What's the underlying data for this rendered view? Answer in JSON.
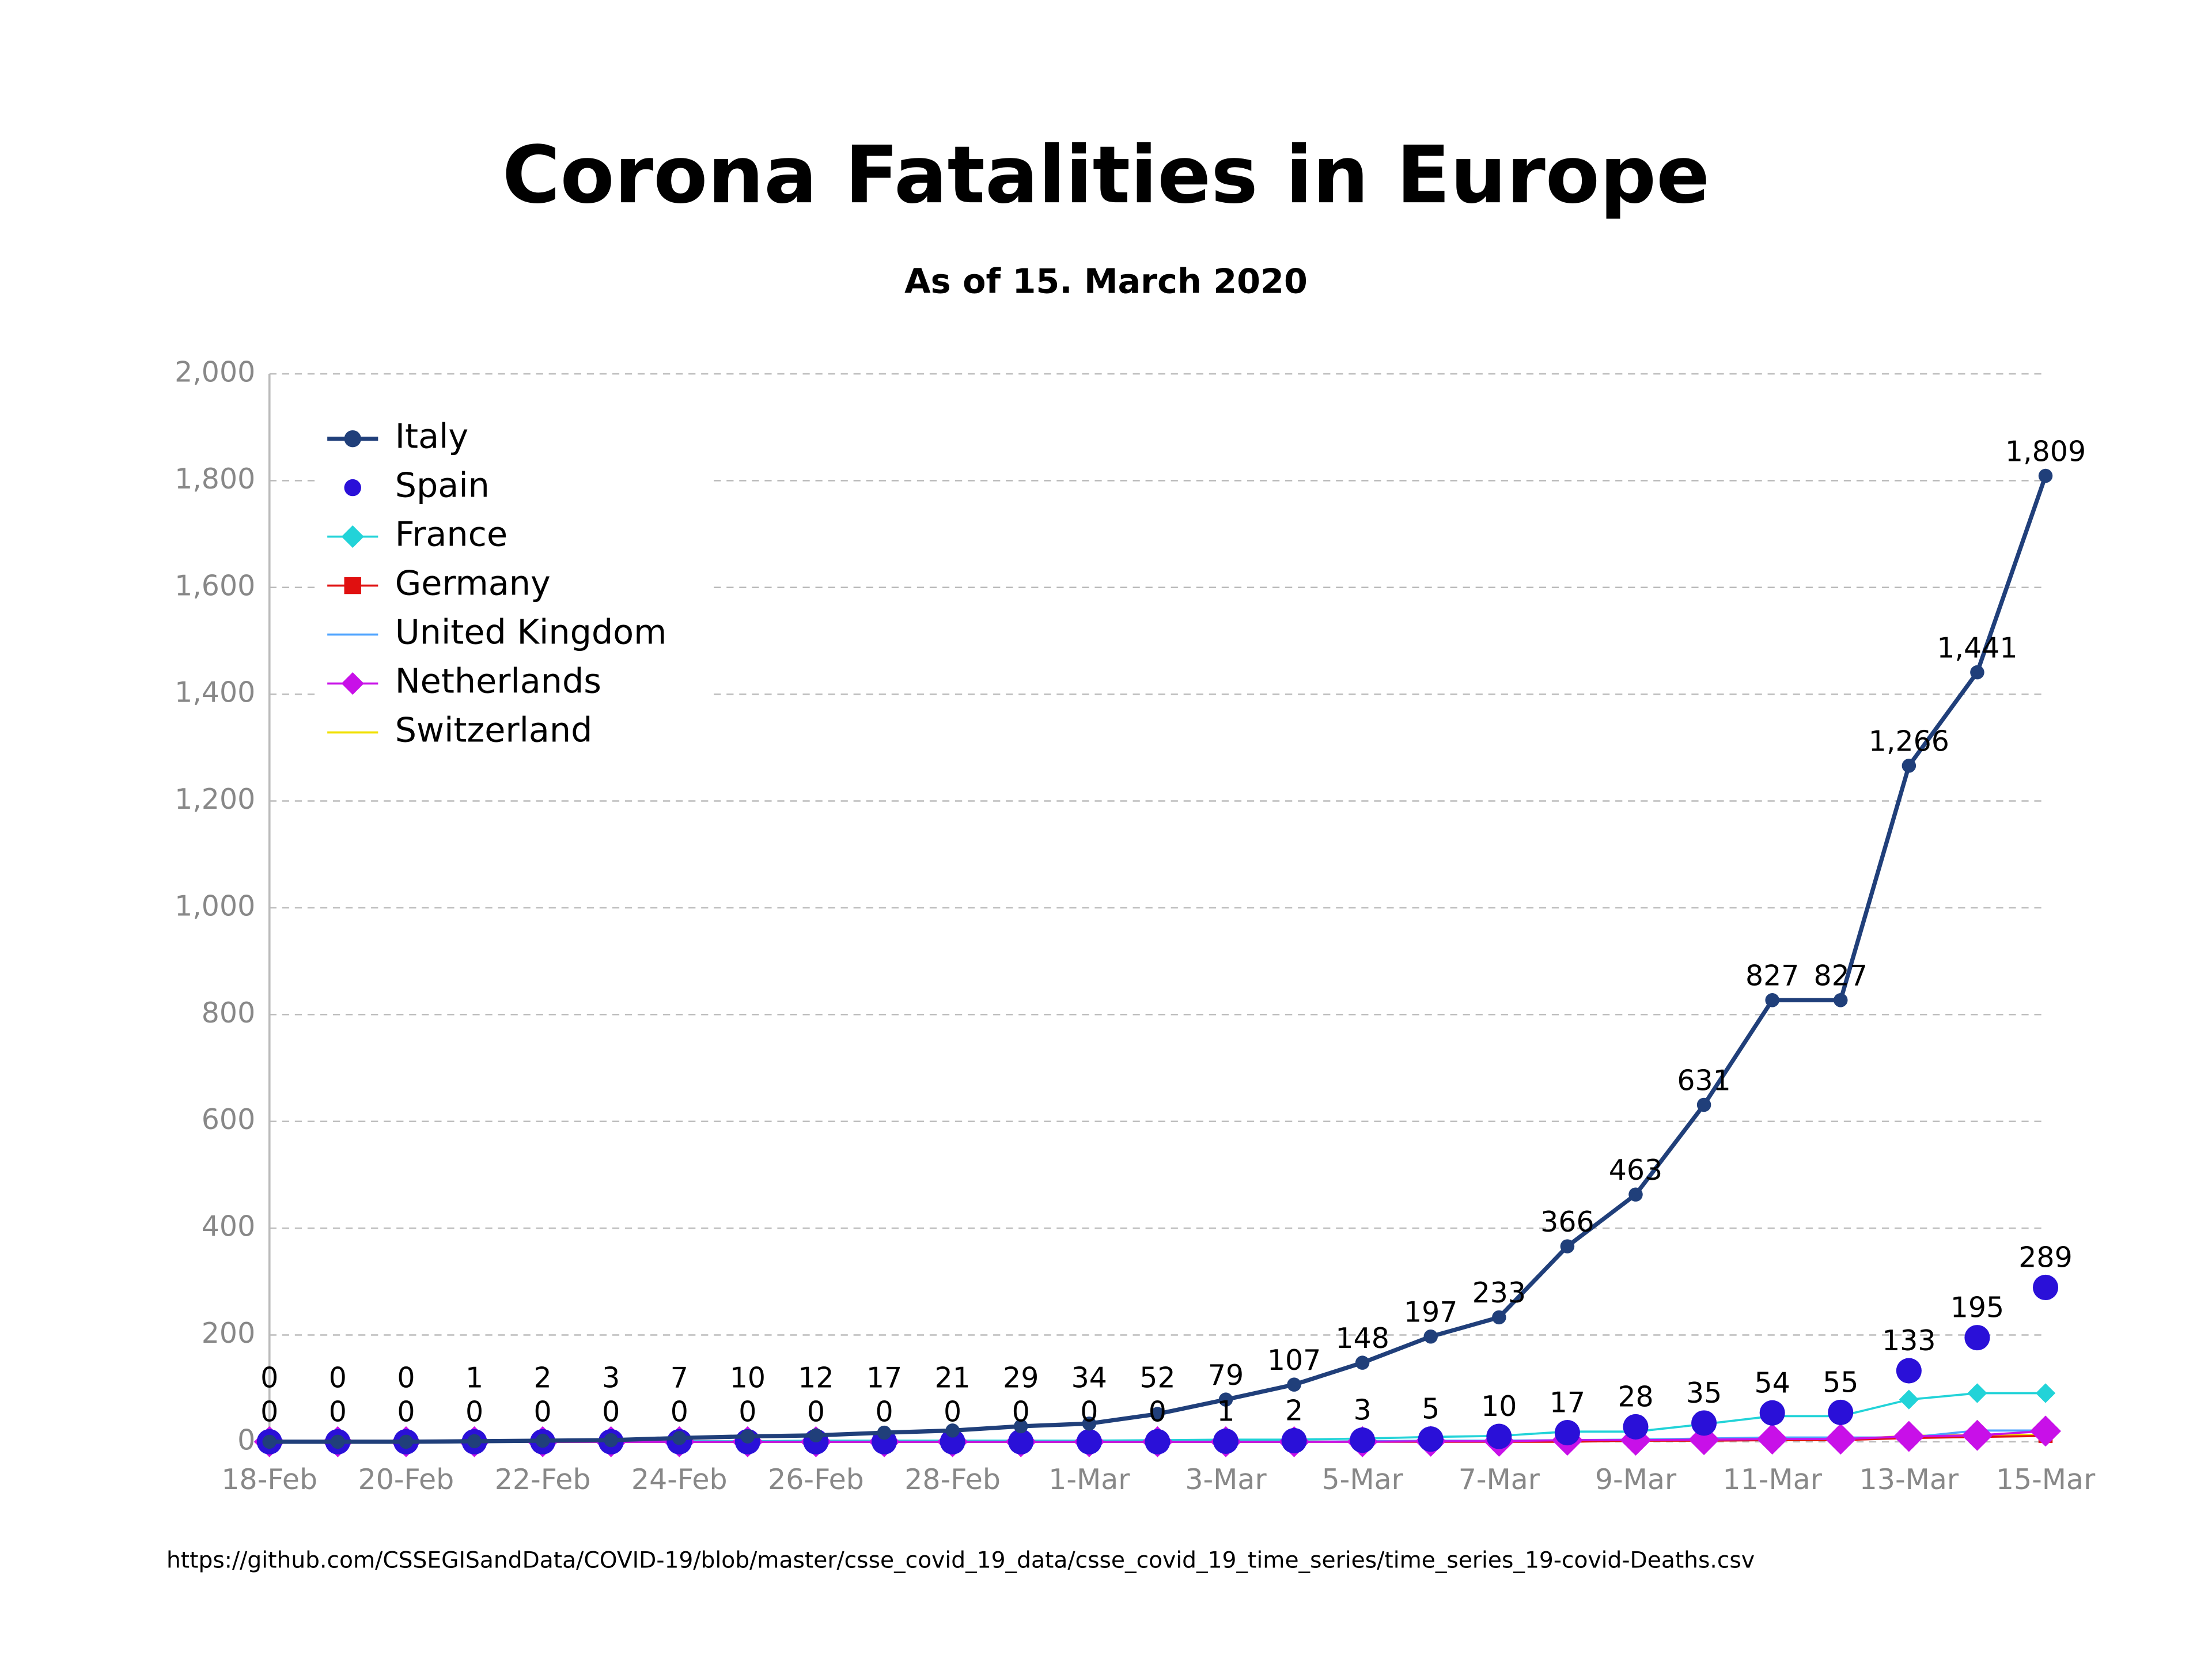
{
  "chart_data": {
    "type": "line",
    "title": "Corona Fatalities in Europe",
    "subtitle": "As of 15. March 2020",
    "source": "https://github.com/CSSEGISandData/COVID-19/blob/master/csse_covid_19_data/csse_covid_19_time_series/time_series_19-covid-Deaths.csv",
    "categories": [
      "18-Feb",
      null,
      "20-Feb",
      null,
      "22-Feb",
      null,
      "24-Feb",
      null,
      "26-Feb",
      null,
      "28-Feb",
      null,
      "1-Mar",
      null,
      "3-Mar",
      null,
      "5-Mar",
      null,
      "7-Mar",
      null,
      "9-Mar",
      null,
      "11-Mar",
      null,
      "13-Mar",
      null,
      "15-Mar"
    ],
    "ylim": [
      0,
      2000
    ],
    "yticks": [
      0,
      200,
      400,
      600,
      800,
      {
        "value": 1000,
        "label": "1,000"
      },
      {
        "value": 1200,
        "label": "1,200"
      },
      {
        "value": 1400,
        "label": "1,400"
      },
      {
        "value": 1600,
        "label": "1,600"
      },
      {
        "value": 1800,
        "label": "1,800"
      },
      {
        "value": 2000,
        "label": "2,000"
      }
    ],
    "grid": true,
    "legend": "upper left",
    "series": [
      {
        "name": "Italy",
        "color": "#203f7a",
        "line": true,
        "marker": "circle",
        "values": [
          0,
          0,
          0,
          1,
          2,
          3,
          7,
          10,
          12,
          17,
          21,
          29,
          34,
          52,
          79,
          107,
          148,
          197,
          233,
          366,
          463,
          631,
          827,
          827,
          1266,
          1441,
          1809
        ],
        "value_labels": [
          "0",
          "0",
          "0",
          "1",
          "2",
          "3",
          "7",
          "10",
          "12",
          "17",
          "21",
          "29",
          "34",
          "52",
          "79",
          "107",
          "148",
          "197",
          "233",
          "366",
          "463",
          "631",
          "827",
          "827",
          "1,266",
          "1,441",
          "1,809"
        ]
      },
      {
        "name": "Spain",
        "color": "#2a10d8",
        "line": false,
        "marker": "circle",
        "values": [
          0,
          0,
          0,
          0,
          0,
          0,
          0,
          0,
          0,
          0,
          0,
          0,
          0,
          0,
          1,
          2,
          3,
          5,
          10,
          17,
          28,
          35,
          54,
          55,
          133,
          195,
          289
        ]
      },
      {
        "name": "France",
        "color": "#22d3d8",
        "line": true,
        "marker": "diamond",
        "values": [
          1,
          1,
          1,
          1,
          1,
          1,
          1,
          1,
          2,
          2,
          2,
          2,
          2,
          3,
          4,
          4,
          6,
          9,
          11,
          19,
          19,
          33,
          48,
          48,
          79,
          91,
          91
        ]
      },
      {
        "name": "Germany",
        "color": "#e01010",
        "line": true,
        "marker": "square",
        "values": [
          0,
          0,
          0,
          0,
          0,
          0,
          0,
          0,
          0,
          0,
          0,
          0,
          0,
          0,
          0,
          0,
          0,
          0,
          0,
          0,
          2,
          2,
          3,
          3,
          7,
          9,
          11
        ]
      },
      {
        "name": "United Kingdom",
        "color": "#4da3ff",
        "line": true,
        "marker": "none",
        "values": [
          0,
          0,
          0,
          0,
          0,
          0,
          0,
          0,
          0,
          0,
          0,
          0,
          0,
          0,
          0,
          0,
          1,
          2,
          2,
          3,
          4,
          6,
          8,
          8,
          8,
          21,
          21
        ]
      },
      {
        "name": "Netherlands",
        "color": "#c810e8",
        "line": true,
        "marker": "diamond",
        "values": [
          0,
          0,
          0,
          0,
          0,
          0,
          0,
          0,
          0,
          0,
          0,
          0,
          0,
          0,
          0,
          0,
          0,
          1,
          1,
          3,
          3,
          4,
          5,
          5,
          10,
          12,
          20
        ]
      },
      {
        "name": "Switzerland",
        "color": "#f0e000",
        "line": true,
        "marker": "none",
        "values": [
          0,
          0,
          0,
          0,
          0,
          0,
          0,
          0,
          0,
          0,
          0,
          0,
          0,
          0,
          0,
          0,
          1,
          1,
          1,
          2,
          2,
          3,
          4,
          4,
          11,
          13,
          13
        ]
      }
    ]
  }
}
